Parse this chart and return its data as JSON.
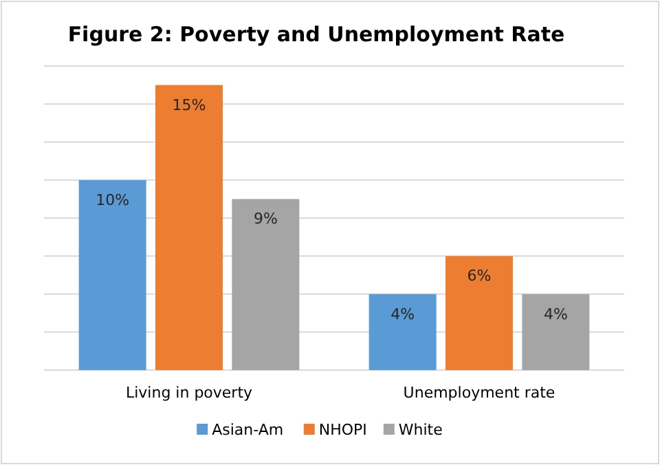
{
  "chart_data": {
    "type": "bar",
    "title": "Figure 2: Poverty and Unemployment Rate",
    "categories": [
      "Living in poverty",
      "Unemployment rate"
    ],
    "series": [
      {
        "name": "Asian-Am",
        "color": "#5b9bd5",
        "values": [
          10,
          4
        ],
        "value_labels": [
          "10%",
          "4%"
        ]
      },
      {
        "name": "NHOPI",
        "color": "#ed7d31",
        "values": [
          15,
          6
        ],
        "value_labels": [
          "15%",
          "6%"
        ]
      },
      {
        "name": "White",
        "color": "#a5a5a5",
        "values": [
          9,
          4
        ],
        "value_labels": [
          "9%",
          "4%"
        ]
      }
    ],
    "ylim": [
      0,
      16
    ],
    "yticks": [
      {
        "value": 0,
        "label": null
      },
      {
        "value": 2,
        "label": null
      },
      {
        "value": 4,
        "label": null
      },
      {
        "value": 6,
        "label": null
      },
      {
        "value": 8,
        "label": null
      },
      {
        "value": 10,
        "label": null
      },
      {
        "value": 12,
        "label": null
      },
      {
        "value": 14,
        "label": null
      },
      {
        "value": 16,
        "label": null
      }
    ],
    "tick_labels": "x",
    "grid": "y",
    "legend": "bottom"
  }
}
